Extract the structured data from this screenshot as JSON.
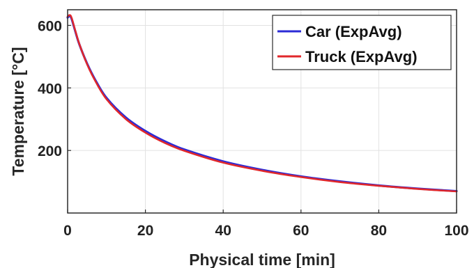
{
  "chart_data": {
    "type": "line",
    "title": "",
    "xlabel": "Physical time [min]",
    "ylabel": "Temperature [°C]",
    "xlim": [
      0,
      100
    ],
    "ylim": [
      0,
      650
    ],
    "xticks": [
      0,
      20,
      40,
      60,
      80,
      100
    ],
    "xtick_labels": [
      "0",
      "20",
      "40",
      "60",
      "80",
      "100"
    ],
    "yticks": [
      200,
      400,
      600
    ],
    "ytick_labels": [
      "200",
      "400",
      "600"
    ],
    "grid": true,
    "legend_position": "top-right",
    "series": [
      {
        "name": "Car (ExpAvg)",
        "color": "#2b2bd6",
        "x": [
          0,
          0.5,
          1,
          2,
          3,
          5,
          7,
          10,
          15,
          20,
          25,
          30,
          40,
          50,
          60,
          70,
          80,
          90,
          100
        ],
        "y": [
          625,
          630,
          622,
          580,
          540,
          478,
          428,
          368,
          305,
          262,
          229,
          203,
          165,
          138,
          117,
          101,
          88,
          78,
          70
        ]
      },
      {
        "name": "Truck (ExpAvg)",
        "color": "#e0272b",
        "x": [
          0,
          0.5,
          1,
          2,
          3,
          5,
          7,
          10,
          15,
          20,
          25,
          30,
          40,
          50,
          60,
          70,
          80,
          90,
          100
        ],
        "y": [
          628,
          633,
          625,
          582,
          541,
          476,
          425,
          364,
          300,
          257,
          224,
          199,
          161,
          135,
          115,
          99,
          87,
          77,
          69
        ]
      }
    ]
  }
}
